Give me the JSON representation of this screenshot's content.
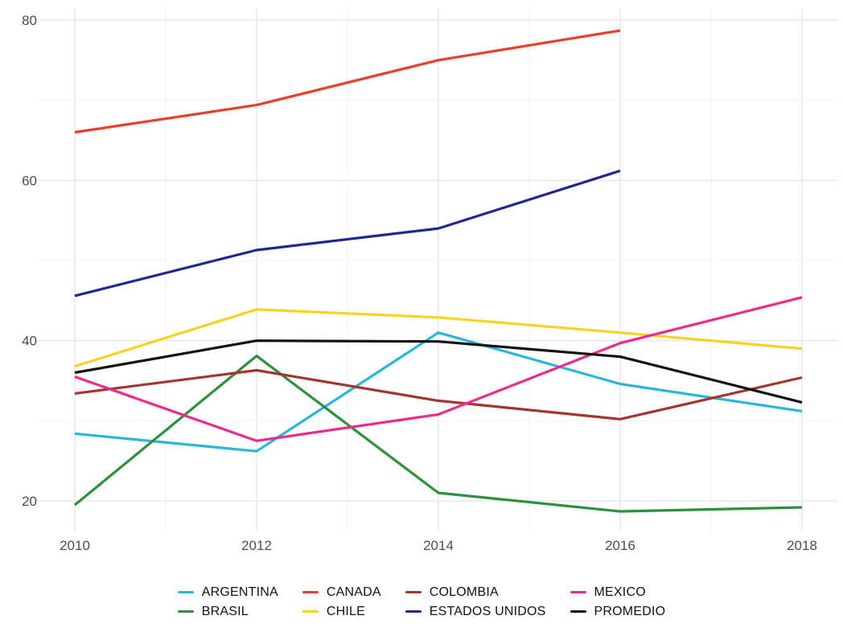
{
  "chart_data": {
    "type": "line",
    "title": "",
    "xlabel": "",
    "ylabel": "",
    "x": [
      2010,
      2012,
      2014,
      2016,
      2018
    ],
    "x_tick_labels": [
      "2010",
      "2012",
      "2014",
      "2016",
      "2018"
    ],
    "y_ticks": [
      20,
      40,
      60,
      80
    ],
    "y_tick_labels": [
      "20",
      "40",
      "60",
      "80"
    ],
    "y_minor_gridlines": [
      30,
      50,
      70
    ],
    "x_minor_gridlines": [
      2011,
      2013,
      2015,
      2017
    ],
    "ylim": [
      16.5,
      81.5
    ],
    "xlim": [
      2009.6,
      2018.4
    ],
    "grid": "on",
    "legend_position": "bottom",
    "series": [
      {
        "name": "ARGENTINA",
        "color": "#2bb5d9",
        "x": [
          2010,
          2012,
          2014,
          2016,
          2018
        ],
        "values": [
          28.4,
          26.2,
          41.0,
          34.6,
          31.2
        ]
      },
      {
        "name": "BRASIL",
        "color": "#2e8f3e",
        "x": [
          2010,
          2012,
          2014,
          2016,
          2018
        ],
        "values": [
          19.5,
          38.1,
          21.0,
          18.7,
          19.2
        ]
      },
      {
        "name": "CANADA",
        "color": "#e8402c",
        "x": [
          2010,
          2012,
          2014,
          2016
        ],
        "values": [
          66.0,
          69.4,
          75.0,
          78.7
        ]
      },
      {
        "name": "CHILE",
        "color": "#f4d321",
        "x": [
          2010,
          2012,
          2014,
          2016,
          2018
        ],
        "values": [
          36.8,
          43.9,
          42.9,
          41.0,
          39.0
        ]
      },
      {
        "name": "COLOMBIA",
        "color": "#a33430",
        "x": [
          2010,
          2012,
          2014,
          2016,
          2018
        ],
        "values": [
          33.4,
          36.3,
          32.5,
          30.2,
          35.4
        ]
      },
      {
        "name": "ESTADOS UNIDOS",
        "color": "#20288e",
        "x": [
          2010,
          2012,
          2014,
          2016
        ],
        "values": [
          45.6,
          51.3,
          54.0,
          61.2
        ]
      },
      {
        "name": "MEXICO",
        "color": "#ee2b8c",
        "x": [
          2010,
          2012,
          2014,
          2016,
          2018
        ],
        "values": [
          35.5,
          27.5,
          30.8,
          39.7,
          45.4
        ]
      },
      {
        "name": "PROMEDIO",
        "color": "#111111",
        "x": [
          2010,
          2012,
          2014,
          2016,
          2018
        ],
        "values": [
          36.0,
          40.0,
          39.9,
          38.0,
          32.3
        ]
      }
    ]
  },
  "legend": {
    "columns": [
      [
        "ARGENTINA",
        "BRASIL"
      ],
      [
        "CANADA",
        "CHILE"
      ],
      [
        "COLOMBIA",
        "ESTADOS UNIDOS"
      ],
      [
        "MEXICO",
        "PROMEDIO"
      ]
    ]
  },
  "style": {
    "background": "#ffffff",
    "grid_major_color": "#e8e8e8",
    "grid_minor_color": "#f2f2f2",
    "axis_text_color": "#4d4d4d",
    "legend_text_color": "#111111"
  }
}
